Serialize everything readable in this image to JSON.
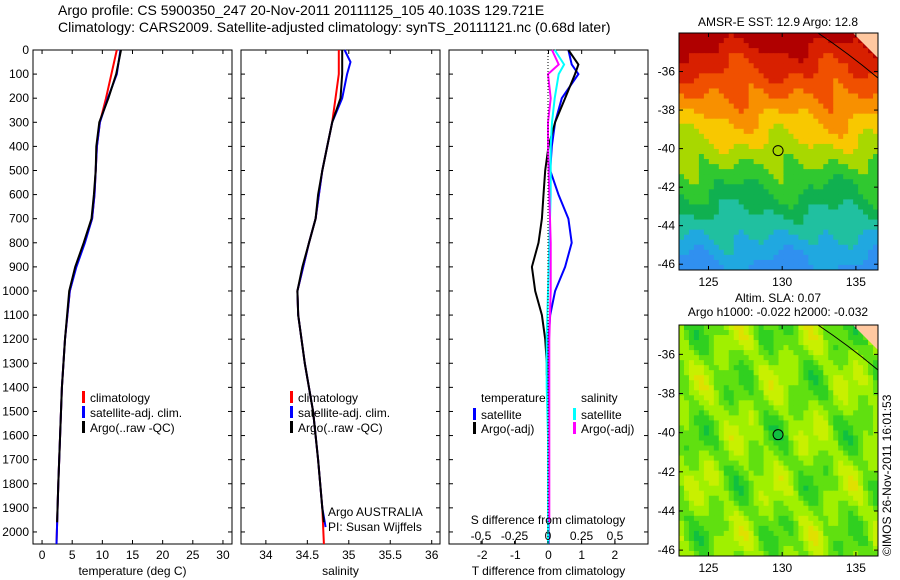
{
  "header": {
    "line1": "Argo profile: CS 5900350_247 20-Nov-2011 20111125_105 40.103S 129.721E",
    "line2": "Climatology: CARS2009. Satellite-adjusted climatology: synTS_20111121.nc (0.68d later)"
  },
  "colors": {
    "climatology": "#ff0000",
    "satellite": "#0000ff",
    "argo": "#000000",
    "sal_satellite": "#00ffff",
    "sal_argo": "#ff00ff"
  },
  "chart_data": [
    {
      "type": "line",
      "id": "temperature",
      "xlabel": "temperature (deg C)",
      "ylabel": "",
      "xlim": [
        -1.5,
        31.5
      ],
      "ylim": [
        2050,
        0
      ],
      "xticks": [
        "0",
        "5",
        "10",
        "15",
        "20",
        "25",
        "30"
      ],
      "xtick_values": [
        0,
        5,
        10,
        15,
        20,
        25,
        30
      ],
      "yticks": [
        "0",
        "100",
        "200",
        "300",
        "400",
        "500",
        "600",
        "700",
        "800",
        "900",
        "1000",
        "1100",
        "1200",
        "1300",
        "1400",
        "1500",
        "1600",
        "1700",
        "1800",
        "1900",
        "2000"
      ],
      "legend": [
        "climatology",
        "satellite-adj. clim.",
        "Argo(..raw -QC)"
      ],
      "series": [
        {
          "name": "climatology",
          "color": "#ff0000",
          "depth": [
            0,
            100,
            200,
            300,
            400,
            500,
            600,
            700,
            800,
            900,
            1000,
            1200,
            1400,
            1600,
            1800,
            2050
          ],
          "values": [
            12.4,
            11.5,
            10.6,
            9.6,
            9.1,
            8.9,
            8.7,
            8.3,
            7.0,
            5.6,
            4.6,
            3.8,
            3.3,
            3.0,
            2.7,
            2.4
          ]
        },
        {
          "name": "satellite-adj. clim.",
          "color": "#0000ff",
          "depth": [
            0,
            100,
            200,
            300,
            400,
            500,
            600,
            700,
            800,
            900,
            1000,
            1200,
            1400,
            1600,
            1800,
            2050
          ],
          "values": [
            13.0,
            12.4,
            10.9,
            9.6,
            9.1,
            8.9,
            8.7,
            8.3,
            7.1,
            5.7,
            4.6,
            3.8,
            3.3,
            3.0,
            2.7,
            2.4
          ]
        },
        {
          "name": "Argo(..raw -QC)",
          "color": "#000000",
          "depth": [
            0,
            100,
            200,
            300,
            400,
            500,
            600,
            700,
            800,
            900,
            1000,
            1200,
            1400,
            1600,
            1800,
            1960
          ],
          "values": [
            13.1,
            12.3,
            11.0,
            9.5,
            9.0,
            8.9,
            8.6,
            8.2,
            6.9,
            5.5,
            4.5,
            3.8,
            3.3,
            3.0,
            2.7,
            2.5
          ]
        }
      ]
    },
    {
      "type": "line",
      "id": "salinity",
      "xlabel": "salinity",
      "xlim": [
        33.7,
        36.1
      ],
      "ylim": [
        2050,
        0
      ],
      "xticks": [
        "34",
        "34.5",
        "35",
        "35.5",
        "36"
      ],
      "xtick_values": [
        34,
        34.5,
        35,
        35.5,
        36
      ],
      "legend": [
        "climatology",
        "satellite-adj. clim.",
        "Argo(..raw -QC)"
      ],
      "annotation": [
        "Argo AUSTRALIA",
        "PI: Susan Wijffels"
      ],
      "series": [
        {
          "name": "climatology",
          "color": "#ff0000",
          "depth": [
            0,
            100,
            200,
            300,
            400,
            500,
            600,
            700,
            800,
            900,
            1000,
            1100,
            1300,
            1500,
            1700,
            1900,
            2050
          ],
          "values": [
            34.88,
            34.88,
            34.84,
            34.8,
            34.74,
            34.68,
            34.64,
            34.6,
            34.52,
            34.45,
            34.38,
            34.39,
            34.47,
            34.57,
            34.63,
            34.68,
            34.7
          ]
        },
        {
          "name": "satellite-adj. clim.",
          "color": "#0000ff",
          "depth": [
            0,
            50,
            100,
            200,
            300,
            400,
            500,
            600,
            700,
            800,
            900,
            1000,
            1100,
            1300,
            1500,
            1700,
            1900,
            1980
          ],
          "values": [
            34.95,
            35.02,
            34.98,
            34.92,
            34.8,
            34.74,
            34.68,
            34.64,
            34.6,
            34.52,
            34.45,
            34.38,
            34.39,
            34.47,
            34.57,
            34.63,
            34.68,
            34.72
          ]
        },
        {
          "name": "Argo(..raw -QC)",
          "color": "#000000",
          "depth": [
            0,
            100,
            200,
            300,
            400,
            500,
            600,
            700,
            800,
            900,
            1000,
            1100,
            1300,
            1500,
            1700,
            1900,
            1960
          ],
          "values": [
            34.92,
            34.92,
            34.9,
            34.8,
            34.74,
            34.68,
            34.63,
            34.6,
            34.52,
            34.44,
            34.38,
            34.39,
            34.47,
            34.57,
            34.63,
            34.68,
            34.7
          ]
        }
      ]
    },
    {
      "type": "line",
      "id": "difference",
      "xlabel": "T difference from climatology",
      "x2label": "S difference from climatology",
      "xlim": [
        -3,
        3
      ],
      "ylim": [
        2050,
        0
      ],
      "xticks": [
        "-2",
        "-1",
        "0",
        "1",
        "2"
      ],
      "xtick_values": [
        -2,
        -1,
        0,
        1,
        2
      ],
      "x2ticks": [
        "-0.5",
        "-0.25",
        "0",
        "0.25",
        "0.5"
      ],
      "x2tick_values": [
        -0.5,
        -0.25,
        0,
        0.25,
        0.5
      ],
      "legend": {
        "temperature": "temperature",
        "salinity": "salinity",
        "t_sat": "satellite",
        "t_argo": "Argo(-adj)",
        "s_sat": "satellite",
        "s_argo": "Argo(-adj)"
      },
      "series": [
        {
          "name": "T satellite",
          "color": "#0000ff",
          "depth": [
            0,
            60,
            100,
            200,
            300,
            400,
            500,
            600,
            700,
            800,
            900,
            1000,
            1100,
            1200,
            1400,
            1600,
            1800,
            2050
          ],
          "values": [
            0.6,
            0.7,
            0.9,
            0.4,
            0.2,
            0.1,
            0.05,
            0.3,
            0.6,
            0.7,
            0.5,
            0.2,
            0.05,
            0,
            0,
            0,
            0,
            0
          ]
        },
        {
          "name": "T Argo(-adj)",
          "color": "#000000",
          "depth": [
            0,
            60,
            100,
            200,
            300,
            400,
            500,
            600,
            700,
            800,
            900,
            1000,
            1100,
            1200,
            1300,
            1350
          ],
          "values": [
            0.6,
            0.9,
            0.8,
            0.5,
            0.2,
            0,
            -0.1,
            -0.15,
            -0.2,
            -0.3,
            -0.5,
            -0.4,
            -0.2,
            -0.1,
            -0.05,
            -0.05
          ]
        },
        {
          "name": "S satellite",
          "color": "#00ffff",
          "depth": [
            0,
            60,
            100,
            200,
            300,
            400,
            600,
            800,
            1000,
            1200,
            1400,
            1600,
            1800,
            2050
          ],
          "values": [
            0.05,
            0.12,
            0.08,
            0.05,
            0.03,
            0.02,
            0.02,
            0.01,
            0,
            -0.01,
            -0.01,
            0,
            0,
            0
          ]
        },
        {
          "name": "S Argo(-adj)",
          "color": "#ff00ff",
          "depth": [
            0,
            60,
            100,
            200,
            300,
            400,
            600,
            800,
            1000,
            1200,
            1400,
            1600,
            1800,
            1960
          ],
          "values": [
            0.03,
            0.08,
            0.0,
            0.02,
            0.0,
            0.0,
            0.01,
            0.02,
            0.02,
            0.01,
            0.01,
            0.01,
            0.01,
            0.01
          ]
        }
      ]
    },
    {
      "type": "heatmap",
      "id": "sst-map",
      "title": "AMSR-E SST: 12.9 Argo: 12.8",
      "xticks": [
        "125",
        "130",
        "135"
      ],
      "yticks": [
        "-36",
        "-38",
        "-40",
        "-42",
        "-44",
        "-46"
      ],
      "argo_position": [
        129.721,
        -40.103
      ]
    },
    {
      "type": "heatmap",
      "id": "sla-map",
      "title": "Altim. SLA: 0.07",
      "subtitle": "Argo h1000: -0.022 h2000: -0.032",
      "xticks": [
        "125",
        "130",
        "135"
      ],
      "yticks": [
        "-36",
        "-38",
        "-40",
        "-42",
        "-44",
        "-46"
      ],
      "argo_position": [
        129.721,
        -40.103
      ]
    }
  ],
  "footer": {
    "credit": "©IMOS 26-Nov-2011 16:01:53"
  }
}
